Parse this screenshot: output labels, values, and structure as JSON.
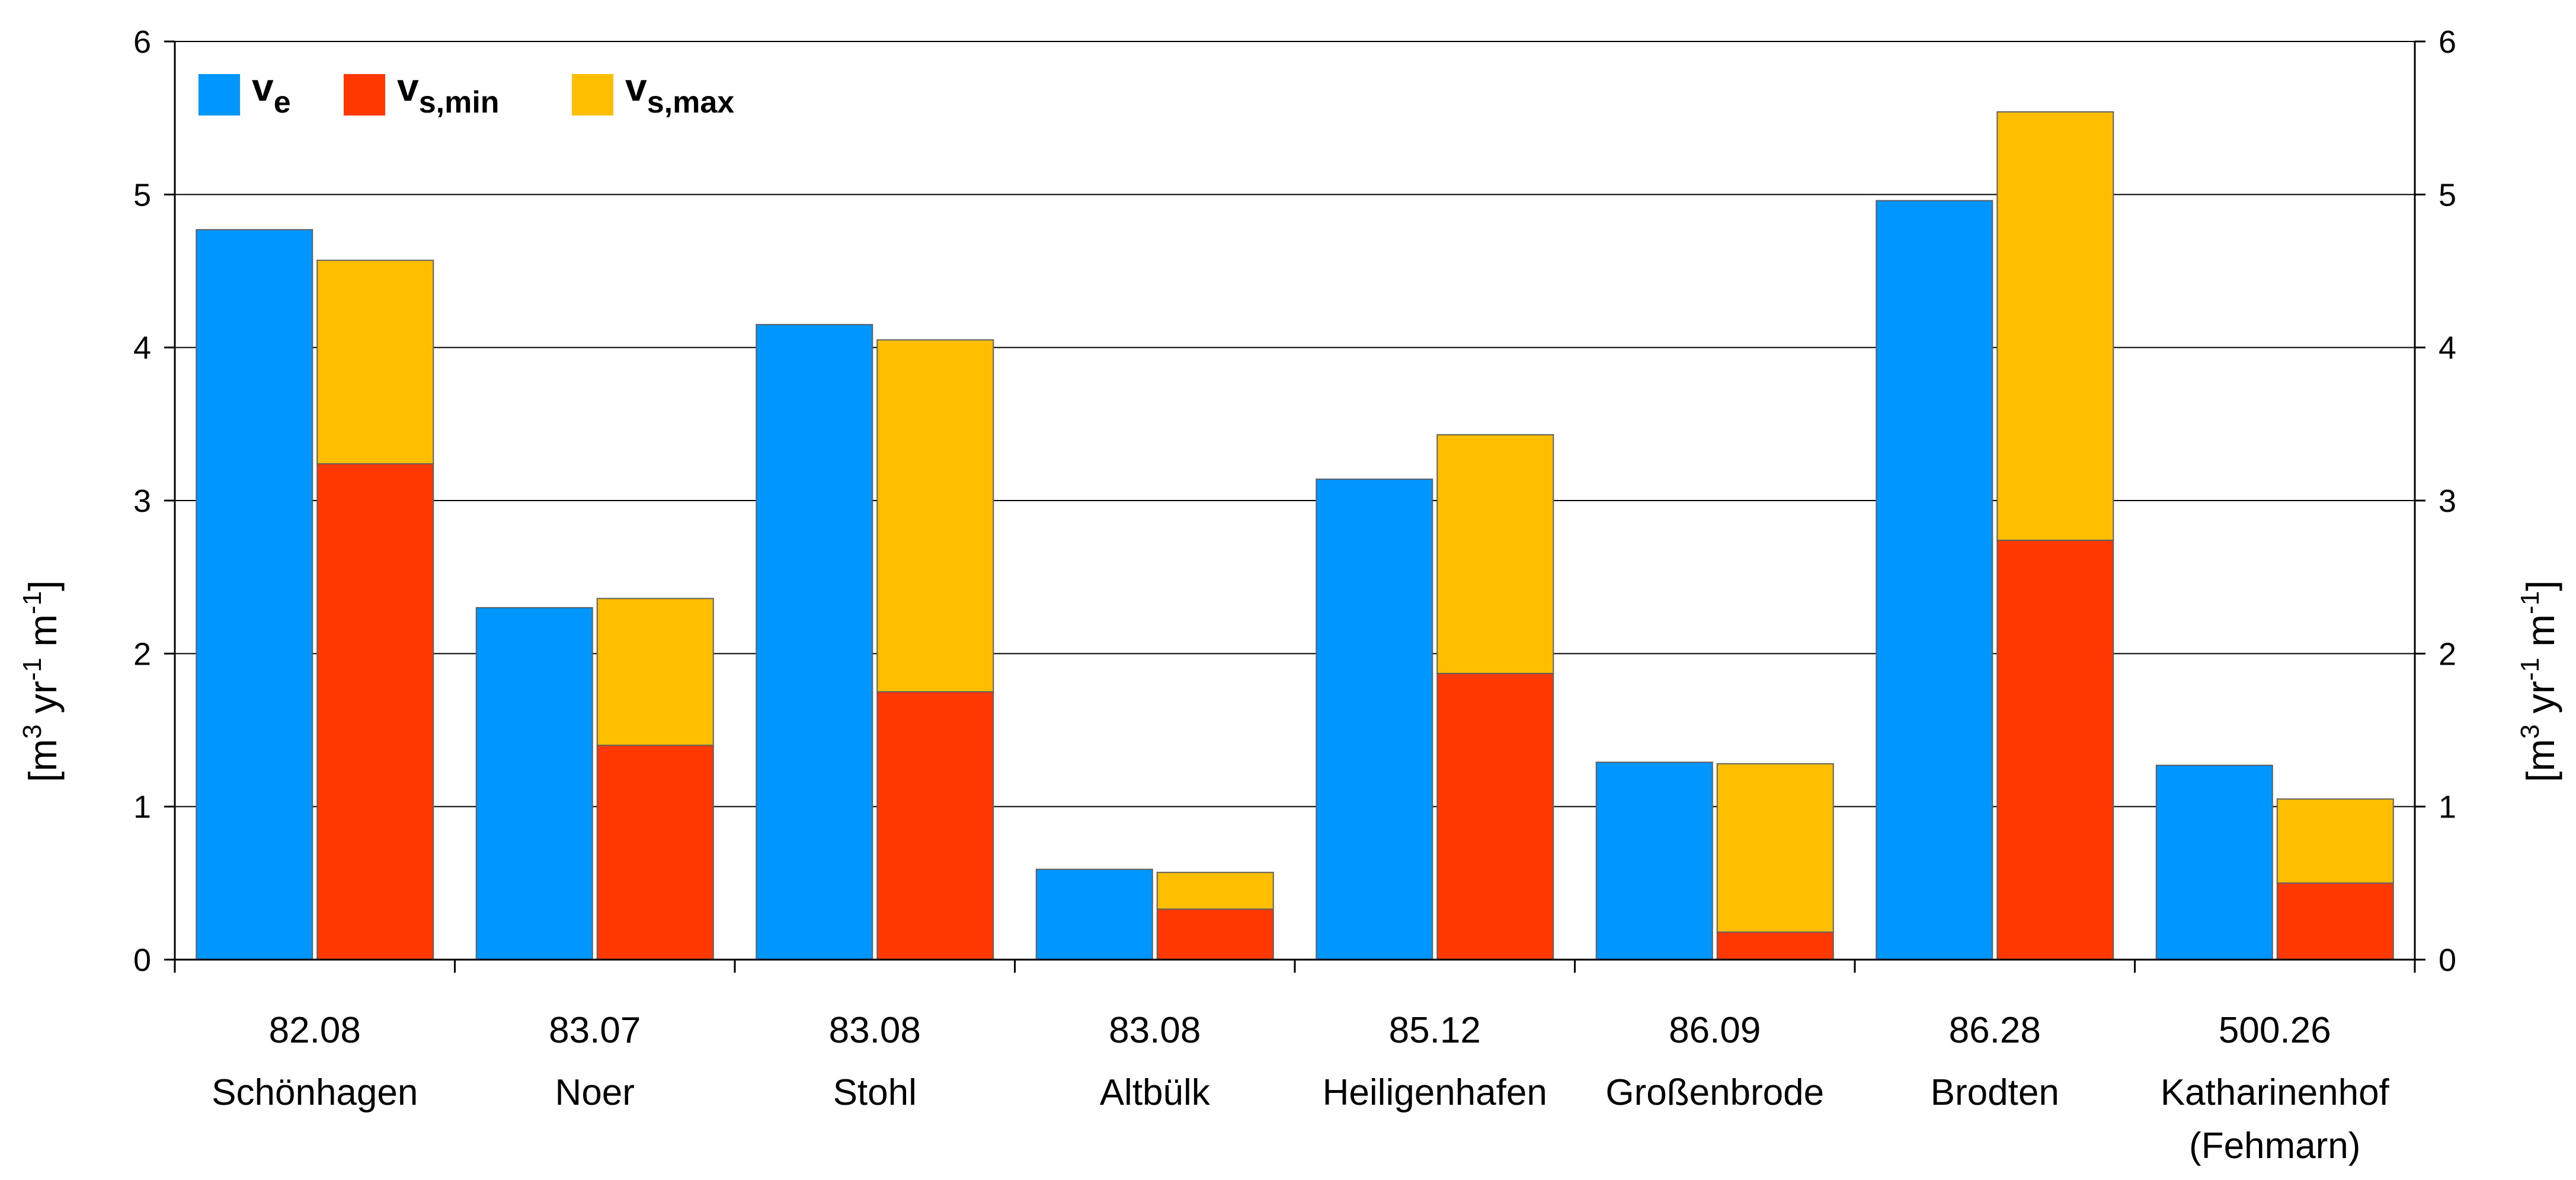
{
  "chart_data": {
    "type": "bar",
    "stacked_series_group": [
      "v_s,min",
      "v_s,max"
    ],
    "categories": [
      {
        "code": "82.08",
        "name": "Schönhagen",
        "name2": ""
      },
      {
        "code": "83.07",
        "name": "Noer",
        "name2": ""
      },
      {
        "code": "83.08",
        "name": "Stohl",
        "name2": ""
      },
      {
        "code": "83.08",
        "name": "Altbülk",
        "name2": ""
      },
      {
        "code": "85.12",
        "name": "Heiligenhafen",
        "name2": ""
      },
      {
        "code": "86.09",
        "name": "Großenbrode",
        "name2": ""
      },
      {
        "code": "86.28",
        "name": "Brodten",
        "name2": ""
      },
      {
        "code": "500.26",
        "name": "Katharinenhof",
        "name2": "(Fehmarn)"
      }
    ],
    "series": [
      {
        "name": "v_e",
        "color": "#0096FF",
        "values": [
          4.77,
          2.3,
          4.15,
          0.59,
          3.14,
          1.29,
          4.96,
          1.27
        ]
      },
      {
        "name": "v_s,min",
        "color": "#FF3700",
        "values": [
          3.24,
          1.4,
          1.75,
          0.33,
          1.87,
          0.18,
          2.74,
          0.5
        ]
      },
      {
        "name": "v_s,max",
        "color": "#FFBF00",
        "values": [
          4.57,
          2.36,
          4.05,
          0.57,
          3.43,
          1.28,
          5.54,
          1.05
        ]
      }
    ],
    "legend": {
      "position": "top-left",
      "entries": [
        {
          "base": "v",
          "sub": "e",
          "color": "#0096FF"
        },
        {
          "base": "v",
          "sub": "s,min",
          "color": "#FF3700"
        },
        {
          "base": "v",
          "sub": "s,max",
          "color": "#FFBF00"
        }
      ]
    },
    "ylabel": {
      "pre": "[m",
      "sup1": "3",
      "mid": " yr",
      "sup2": "-1",
      "post": " m",
      "sup3": "-1",
      "end": "]"
    },
    "ylim": [
      0,
      6
    ],
    "yticks": [
      "0",
      "1",
      "2",
      "3",
      "4",
      "5",
      "6"
    ],
    "grid": true
  }
}
